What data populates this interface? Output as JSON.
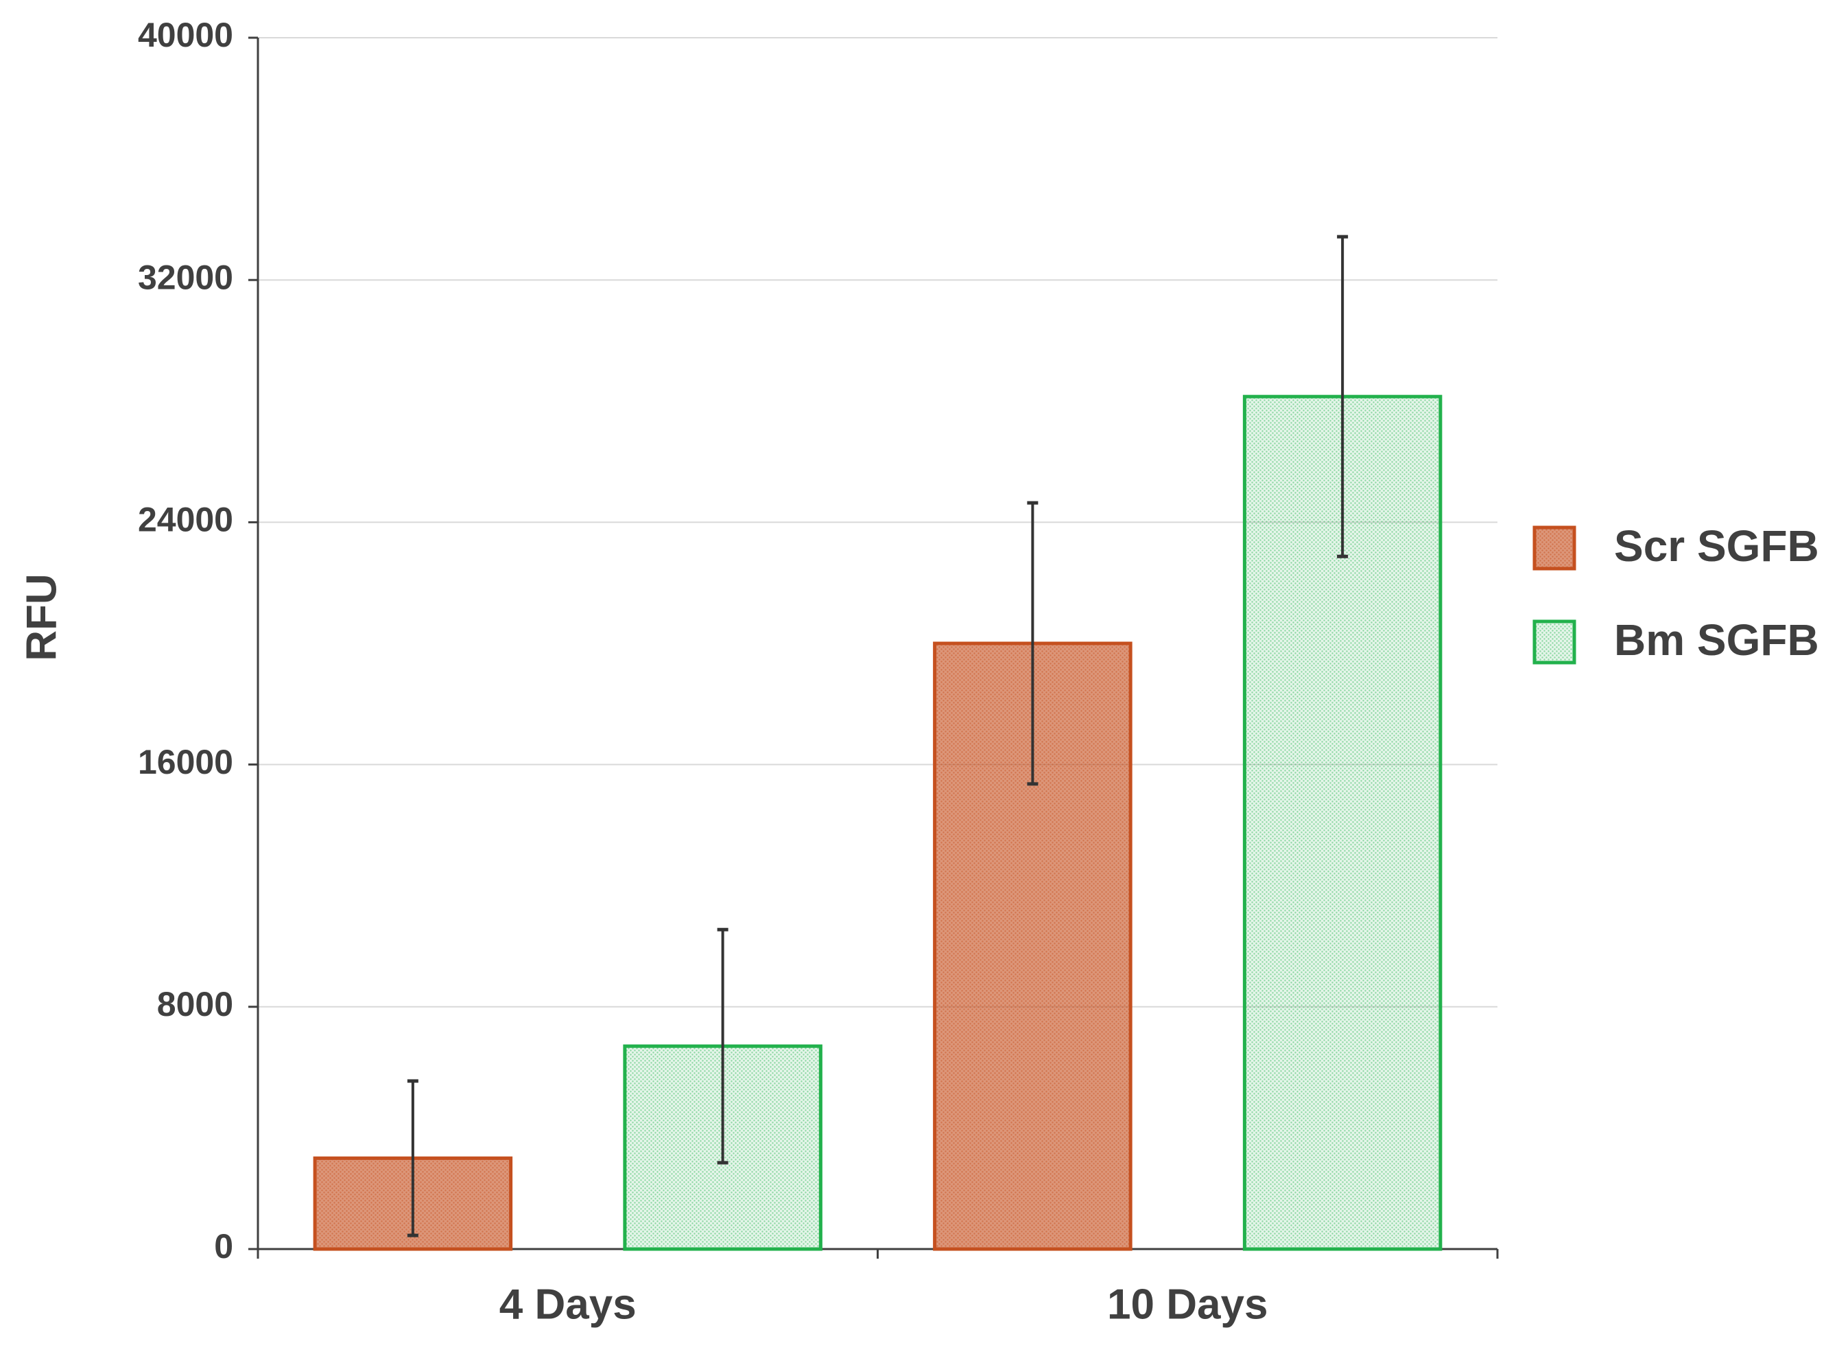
{
  "chart_data": {
    "type": "bar",
    "y_label": "RFU",
    "categories": [
      "4 Days",
      "10 Days"
    ],
    "series": [
      {
        "name": "Scr SGFB",
        "color": "#c5501f",
        "values": [
          3000,
          20000
        ],
        "errors": [
          2550,
          4640
        ]
      },
      {
        "name": "Bm SGFB",
        "color": "#22b14c",
        "values": [
          6700,
          28150
        ],
        "errors": [
          3850,
          5280
        ]
      }
    ],
    "ylim": [
      0,
      40000
    ],
    "yticks": [
      0,
      8000,
      16000,
      24000,
      32000,
      40000
    ],
    "grid": true,
    "legend": "right"
  }
}
